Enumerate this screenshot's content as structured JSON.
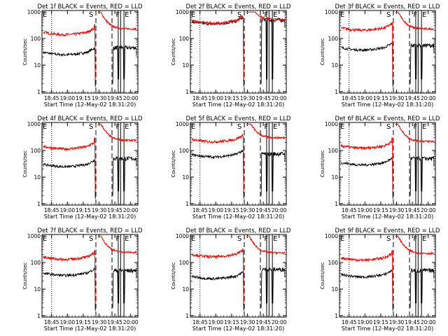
{
  "figure": {
    "xlabel": "Start Time (12-May-02 18:31:20)",
    "ylabel": "Counts/sec",
    "x_tick_labels": [
      "18:45",
      "19:00",
      "19:15",
      "19:30",
      "19:45",
      "20:00"
    ],
    "y_tick_labels": [
      "1",
      "10",
      "100",
      "1000"
    ],
    "colors": {
      "events": "#000000",
      "lld": "#ff0000"
    }
  },
  "chart_data": [
    {
      "type": "line",
      "title": "Det 1f  BLACK = Events, RED = LLD",
      "markers": [
        "E",
        "S",
        "F",
        "E"
      ],
      "x_range_minutes_from_start": [
        0,
        100
      ],
      "ylim": [
        1,
        1000
      ],
      "yscale": "log",
      "series": [
        {
          "name": "Events",
          "level_before": 30,
          "peak_before": 45,
          "level_after": 45
        },
        {
          "name": "LLD",
          "level_before": 170,
          "peak_before": 330,
          "level_after": 230
        }
      ]
    },
    {
      "type": "line",
      "title": "Det 2f  BLACK = Events, RED = LLD",
      "markers": [
        "E",
        "S",
        "F",
        "E"
      ],
      "x_range_minutes_from_start": [
        0,
        100
      ],
      "ylim": [
        1,
        1000
      ],
      "yscale": "log",
      "series": [
        {
          "name": "Events",
          "level_before": 430,
          "peak_before": 560,
          "level_after": 500
        },
        {
          "name": "LLD",
          "level_before": 460,
          "peak_before": 620,
          "level_after": 520
        }
      ]
    },
    {
      "type": "line",
      "title": "Det 3f  BLACK = Events, RED = LLD",
      "markers": [
        "E",
        "S",
        "F",
        "E"
      ],
      "x_range_minutes_from_start": [
        0,
        100
      ],
      "ylim": [
        1,
        1000
      ],
      "yscale": "log",
      "series": [
        {
          "name": "Events",
          "level_before": 45,
          "peak_before": 70,
          "level_after": 55
        },
        {
          "name": "LLD",
          "level_before": 250,
          "peak_before": 400,
          "level_after": 230
        }
      ]
    },
    {
      "type": "line",
      "title": "Det 4f  BLACK = Events, RED = LLD",
      "markers": [
        "E",
        "S",
        "F",
        "E"
      ],
      "x_range_minutes_from_start": [
        0,
        100
      ],
      "ylim": [
        1,
        1000
      ],
      "yscale": "log",
      "series": [
        {
          "name": "Events",
          "level_before": 30,
          "peak_before": 45,
          "level_after": 50
        },
        {
          "name": "LLD",
          "level_before": 140,
          "peak_before": 300,
          "level_after": 240
        }
      ]
    },
    {
      "type": "line",
      "title": "Det 5f  BLACK = Events, RED = LLD",
      "markers": [
        "E",
        "S",
        "F",
        "E"
      ],
      "x_range_minutes_from_start": [
        0,
        100
      ],
      "ylim": [
        1,
        1000
      ],
      "yscale": "log",
      "series": [
        {
          "name": "Events",
          "level_before": 70,
          "peak_before": 90,
          "level_after": 75
        },
        {
          "name": "LLD",
          "level_before": 260,
          "peak_before": 330,
          "level_after": 300
        }
      ]
    },
    {
      "type": "line",
      "title": "Det 6f  BLACK = Events, RED = LLD",
      "markers": [
        "E",
        "S",
        "F",
        "E"
      ],
      "x_range_minutes_from_start": [
        0,
        100
      ],
      "ylim": [
        1,
        1000
      ],
      "yscale": "log",
      "series": [
        {
          "name": "Events",
          "level_before": 35,
          "peak_before": 55,
          "level_after": 50
        },
        {
          "name": "LLD",
          "level_before": 150,
          "peak_before": 300,
          "level_after": 220
        }
      ]
    },
    {
      "type": "line",
      "title": "Det 7f  BLACK = Events, RED = LLD",
      "markers": [
        "E",
        "S",
        "F",
        "E"
      ],
      "x_range_minutes_from_start": [
        0,
        100
      ],
      "ylim": [
        1,
        1000
      ],
      "yscale": "log",
      "series": [
        {
          "name": "Events",
          "level_before": 40,
          "peak_before": 55,
          "level_after": 50
        },
        {
          "name": "LLD",
          "level_before": 160,
          "peak_before": 280,
          "level_after": 240
        }
      ]
    },
    {
      "type": "line",
      "title": "Det 8f  BLACK = Events, RED = LLD",
      "markers": [
        "E",
        "S",
        "F",
        "E"
      ],
      "x_range_minutes_from_start": [
        0,
        100
      ],
      "ylim": [
        1,
        1000
      ],
      "yscale": "log",
      "series": [
        {
          "name": "Events",
          "level_before": 30,
          "peak_before": 45,
          "level_after": 55
        },
        {
          "name": "LLD",
          "level_before": 200,
          "peak_before": 320,
          "level_after": 230
        }
      ]
    },
    {
      "type": "line",
      "title": "Det 9f  BLACK = Events, RED = LLD",
      "markers": [
        "E",
        "S",
        "F",
        "E"
      ],
      "x_range_minutes_from_start": [
        0,
        100
      ],
      "ylim": [
        1,
        1000
      ],
      "yscale": "log",
      "series": [
        {
          "name": "Events",
          "level_before": 35,
          "peak_before": 50,
          "level_after": 50
        },
        {
          "name": "LLD",
          "level_before": 150,
          "peak_before": 280,
          "level_after": 220
        }
      ]
    }
  ]
}
